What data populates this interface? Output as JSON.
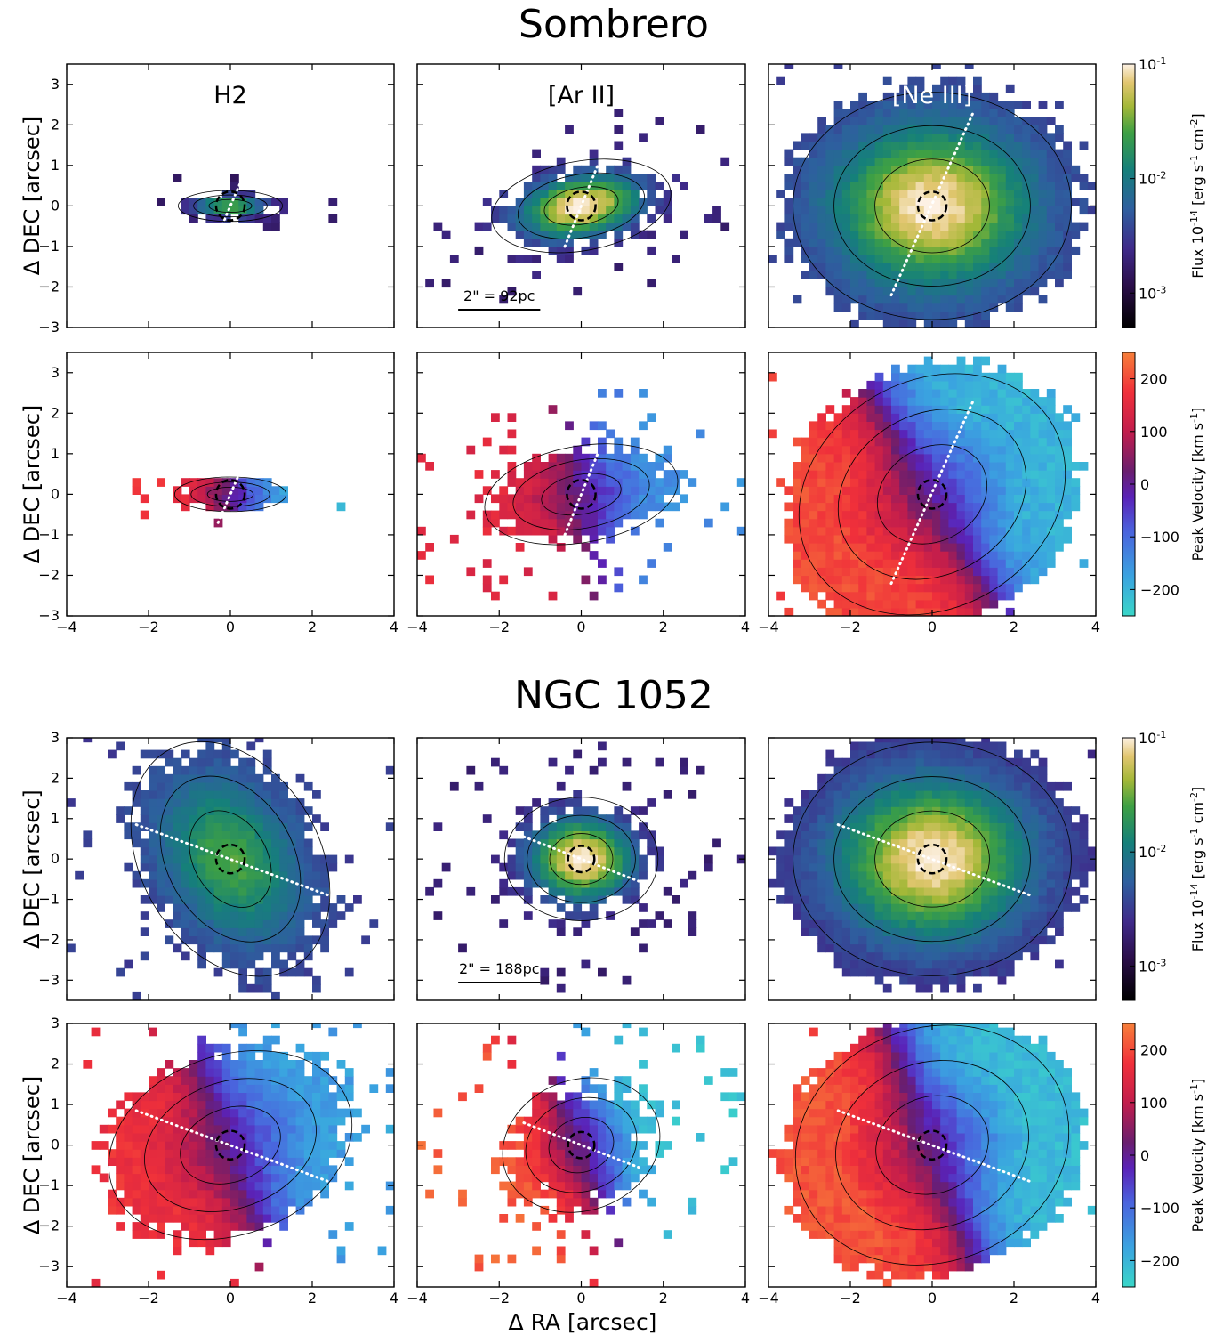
{
  "figure": {
    "sections": [
      {
        "title": "Sombrero",
        "scalebar": "2\" = 92pc"
      },
      {
        "title": "NGC 1052",
        "scalebar": "2\" = 188pc"
      }
    ],
    "column_labels": [
      "H2",
      "[Ar II]",
      "[Ne III]"
    ],
    "ylabel": "Δ DEC [arcsec]",
    "xlabel": "Δ RA [arcsec]",
    "colorbars": {
      "flux": {
        "label": "Flux 10^-14 [erg s^-1 cm^-2]",
        "scale": "log",
        "range": [
          0.0005,
          0.1
        ],
        "ticks": [
          "10^-1",
          "10^-2",
          "10^-3"
        ],
        "colormap": "gist_earth-like (black–purple–blue–teal–green–yellow–cream)"
      },
      "velocity": {
        "label": "Peak Velocity [km s^-1]",
        "range": [
          -250,
          250
        ],
        "ticks": [
          "200",
          "100",
          "0",
          "−100",
          "−200"
        ],
        "colormap": "rainbow-like (cyan–blue–purple–red–orange)"
      }
    },
    "colors": {
      "contour": "#000000",
      "pa_line": "#ffffff",
      "nucleus_circle": "#000000"
    }
  },
  "chart_data": [
    {
      "type": "heatmap",
      "galaxy": "Sombrero",
      "line": "H2",
      "quantity": "flux",
      "xlim": [
        -4,
        4
      ],
      "ylim": [
        -3,
        3.5
      ],
      "x_ticks": [
        "−4",
        "−2",
        "0",
        "2",
        "4"
      ],
      "y_ticks": [
        "3",
        "2",
        "1",
        "0",
        "−1",
        "−2",
        "−3"
      ],
      "axis_label": "Δ DEC [arcsec]",
      "map": {
        "center": [
          0,
          0
        ],
        "extent_x": 1.5,
        "extent_y": 0.45,
        "pa_deg": 0,
        "peak": 0.8,
        "edge": 0.22,
        "roughness": 0.4
      },
      "pa_line": {
        "x1": -0.3,
        "y1": -0.7,
        "x2": 0.3,
        "y2": 0.7
      },
      "nucleus_radius": 0.35
    },
    {
      "type": "heatmap",
      "galaxy": "Sombrero",
      "line": "[Ar II]",
      "quantity": "flux",
      "xlim": [
        -4,
        4
      ],
      "ylim": [
        -3,
        3.5
      ],
      "x_ticks": [
        "−4",
        "−2",
        "0",
        "2",
        "4"
      ],
      "y_ticks": [],
      "map": {
        "center": [
          0,
          0
        ],
        "extent_x": 2.6,
        "extent_y": 1.3,
        "pa_deg": 10,
        "peak": 1.0,
        "edge": 0.25,
        "roughness": 0.45
      },
      "pa_line": {
        "x1": -0.4,
        "y1": -1.0,
        "x2": 0.4,
        "y2": 1.0
      },
      "nucleus_radius": 0.35
    },
    {
      "type": "heatmap",
      "galaxy": "Sombrero",
      "line": "[Ne III]",
      "quantity": "flux",
      "xlim": [
        -4,
        4
      ],
      "ylim": [
        -3,
        3.5
      ],
      "x_ticks": [
        "−4",
        "−2",
        "0",
        "2",
        "4"
      ],
      "y_ticks": [],
      "map": {
        "center": [
          0,
          0
        ],
        "extent_x": 4.0,
        "extent_y": 3.3,
        "pa_deg": 0,
        "peak": 1.0,
        "edge": 0.35,
        "roughness": 0.15
      },
      "pa_line": {
        "x1": -1.0,
        "y1": -2.2,
        "x2": 1.0,
        "y2": 2.3
      },
      "nucleus_radius": 0.35
    },
    {
      "type": "heatmap",
      "galaxy": "Sombrero",
      "line": "H2",
      "quantity": "velocity",
      "xlim": [
        -4,
        4
      ],
      "ylim": [
        -3,
        3.5
      ],
      "x_ticks": [
        "−4",
        "−2",
        "0",
        "2",
        "4"
      ],
      "y_ticks": [
        "3",
        "2",
        "1",
        "0",
        "−1",
        "−2",
        "−3"
      ],
      "axis_label": "Δ DEC [arcsec]",
      "map": {
        "center": [
          0,
          0
        ],
        "extent_x": 1.6,
        "extent_y": 0.5,
        "pa_deg": 0,
        "vmax": 190,
        "roughness": 0.4
      },
      "pa_line": {
        "x1": -0.3,
        "y1": -0.7,
        "x2": 0.3,
        "y2": 0.7
      },
      "nucleus_radius": 0.35
    },
    {
      "type": "heatmap",
      "galaxy": "Sombrero",
      "line": "[Ar II]",
      "quantity": "velocity",
      "xlim": [
        -4,
        4
      ],
      "ylim": [
        -3,
        3.5
      ],
      "x_ticks": [
        "−4",
        "−2",
        "0",
        "2",
        "4"
      ],
      "y_ticks": [],
      "map": {
        "center": [
          0,
          0
        ],
        "extent_x": 2.8,
        "extent_y": 1.4,
        "pa_deg": 10,
        "vmax": 150,
        "roughness": 0.45
      },
      "pa_line": {
        "x1": -0.4,
        "y1": -1.0,
        "x2": 0.4,
        "y2": 1.0
      },
      "nucleus_radius": 0.35
    },
    {
      "type": "heatmap",
      "galaxy": "Sombrero",
      "line": "[Ne III]",
      "quantity": "velocity",
      "xlim": [
        -4,
        4
      ],
      "ylim": [
        -3,
        3.5
      ],
      "x_ticks": [
        "−4",
        "−2",
        "0",
        "2",
        "4"
      ],
      "y_ticks": [],
      "map": {
        "center": [
          0,
          0
        ],
        "extent_x": 4.0,
        "extent_y": 3.3,
        "pa_deg": 30,
        "vmax": 200,
        "roughness": 0.1
      },
      "pa_line": {
        "x1": -1.0,
        "y1": -2.2,
        "x2": 1.0,
        "y2": 2.3
      },
      "nucleus_radius": 0.35
    },
    {
      "type": "heatmap",
      "galaxy": "NGC 1052",
      "line": "H2",
      "quantity": "flux",
      "xlim": [
        -4,
        4
      ],
      "ylim": [
        -3.5,
        3
      ],
      "x_ticks": [
        "−4",
        "−2",
        "0",
        "2",
        "4"
      ],
      "y_ticks": [
        "3",
        "2",
        "1",
        "0",
        "−1",
        "−2",
        "−3"
      ],
      "axis_label": "Δ DEC [arcsec]",
      "map": {
        "center": [
          0,
          0
        ],
        "extent_x": 3.6,
        "extent_y": 2.6,
        "pa_deg": -60,
        "peak": 0.75,
        "edge": 0.35,
        "roughness": 0.3
      },
      "pa_line": {
        "x1": -2.3,
        "y1": 0.85,
        "x2": 2.4,
        "y2": -0.9
      },
      "nucleus_radius": 0.35
    },
    {
      "type": "heatmap",
      "galaxy": "NGC 1052",
      "line": "[Ar II]",
      "quantity": "flux",
      "xlim": [
        -4,
        4
      ],
      "ylim": [
        -3.5,
        3
      ],
      "x_ticks": [
        "−4",
        "−2",
        "0",
        "2",
        "4"
      ],
      "y_ticks": [],
      "map": {
        "center": [
          0,
          0
        ],
        "extent_x": 2.2,
        "extent_y": 1.8,
        "pa_deg": 0,
        "peak": 1.0,
        "edge": 0.25,
        "roughness": 0.45
      },
      "pa_line": {
        "x1": -1.4,
        "y1": 0.55,
        "x2": 1.4,
        "y2": -0.55
      },
      "nucleus_radius": 0.32
    },
    {
      "type": "heatmap",
      "galaxy": "NGC 1052",
      "line": "[Ne III]",
      "quantity": "flux",
      "xlim": [
        -4,
        4
      ],
      "ylim": [
        -3.5,
        3
      ],
      "x_ticks": [
        "−4",
        "−2",
        "0",
        "2",
        "4"
      ],
      "y_ticks": [],
      "map": {
        "center": [
          0,
          0
        ],
        "extent_x": 4.0,
        "extent_y": 3.4,
        "pa_deg": 0,
        "peak": 1.0,
        "edge": 0.3,
        "roughness": 0.12
      },
      "pa_line": {
        "x1": -2.3,
        "y1": 0.85,
        "x2": 2.4,
        "y2": -0.9
      },
      "nucleus_radius": 0.35
    },
    {
      "type": "heatmap",
      "galaxy": "NGC 1052",
      "line": "H2",
      "quantity": "velocity",
      "xlim": [
        -4,
        4
      ],
      "ylim": [
        -3.5,
        3
      ],
      "x_ticks": [
        "−4",
        "−2",
        "0",
        "2",
        "4"
      ],
      "y_ticks": [
        "3",
        "2",
        "1",
        "0",
        "−1",
        "−2",
        "−3"
      ],
      "axis_label": "Δ DEC [arcsec]",
      "map": {
        "center": [
          0,
          0
        ],
        "extent_x": 3.6,
        "extent_y": 2.6,
        "pa_deg": 20,
        "vmax": 170,
        "roughness": 0.25
      },
      "pa_line": {
        "x1": -2.3,
        "y1": 0.85,
        "x2": 2.4,
        "y2": -0.9
      },
      "nucleus_radius": 0.35
    },
    {
      "type": "heatmap",
      "galaxy": "NGC 1052",
      "line": "[Ar II]",
      "quantity": "velocity",
      "xlim": [
        -4,
        4
      ],
      "ylim": [
        -3.5,
        3
      ],
      "x_ticks": [
        "−4",
        "−2",
        "0",
        "2",
        "4"
      ],
      "y_ticks": [],
      "map": {
        "center": [
          0,
          0
        ],
        "extent_x": 2.3,
        "extent_y": 1.9,
        "pa_deg": 20,
        "vmax": 220,
        "roughness": 0.45
      },
      "pa_line": {
        "x1": -1.4,
        "y1": 0.55,
        "x2": 1.4,
        "y2": -0.55
      },
      "nucleus_radius": 0.32
    },
    {
      "type": "heatmap",
      "galaxy": "NGC 1052",
      "line": "[Ne III]",
      "quantity": "velocity",
      "xlim": [
        -4,
        4
      ],
      "ylim": [
        -3.5,
        3
      ],
      "x_ticks": [
        "−4",
        "−2",
        "0",
        "2",
        "4"
      ],
      "y_ticks": [],
      "map": {
        "center": [
          0,
          0
        ],
        "extent_x": 4.0,
        "extent_y": 3.4,
        "pa_deg": 20,
        "vmax": 210,
        "roughness": 0.12
      },
      "pa_line": {
        "x1": -2.3,
        "y1": 0.85,
        "x2": 2.4,
        "y2": -0.9
      },
      "nucleus_radius": 0.35
    }
  ]
}
